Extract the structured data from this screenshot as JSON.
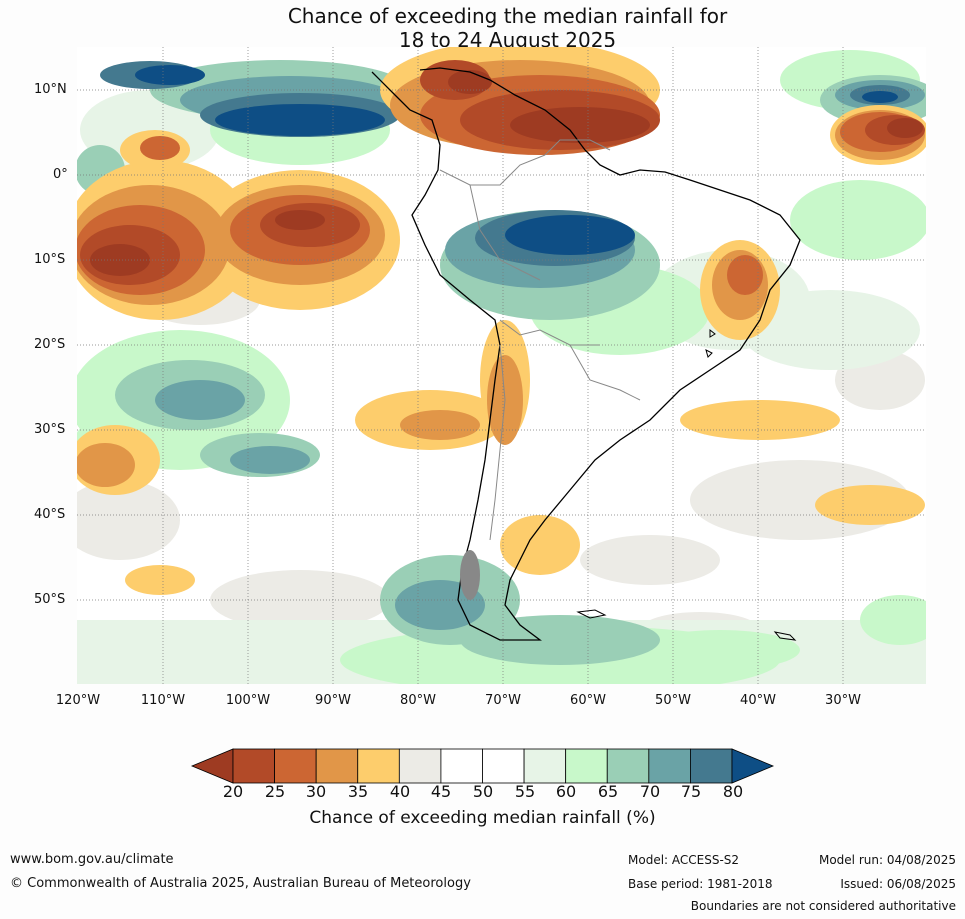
{
  "title": {
    "line1": "Chance of exceeding the median rainfall for",
    "line2": "18 to 24 August 2025"
  },
  "map": {
    "lat_labels": [
      "10°N",
      "0°",
      "10°S",
      "20°S",
      "30°S",
      "40°S",
      "50°S"
    ],
    "lon_labels": [
      "120°W",
      "110°W",
      "100°W",
      "90°W",
      "80°W",
      "70°W",
      "60°W",
      "50°W",
      "40°W",
      "30°W"
    ]
  },
  "colorbar": {
    "ticks": [
      "20",
      "25",
      "30",
      "35",
      "40",
      "45",
      "50",
      "55",
      "60",
      "65",
      "70",
      "75",
      "80"
    ],
    "colors": [
      "#9e3b22",
      "#b24a28",
      "#cc6633",
      "#e19648",
      "#fdcd6c",
      "#ecebe6",
      "#ffffff",
      "#ffffff",
      "#e7f4e7",
      "#c8f8ca",
      "#9acfb6",
      "#6aa3a6",
      "#44798f",
      "#0e4e85"
    ],
    "label": "Chance of exceeding median rainfall (%)"
  },
  "footer": {
    "website": "www.bom.gov.au/climate",
    "copyright": "© Commonwealth of Australia 2025, Australian Bureau of Meteorology",
    "model": "Model: ACCESS-S2",
    "base_period": "Base period: 1981-2018",
    "model_run": "Model run: 04/08/2025",
    "issued": "Issued: 06/08/2025",
    "boundaries": "Boundaries are not considered authoritative"
  }
}
